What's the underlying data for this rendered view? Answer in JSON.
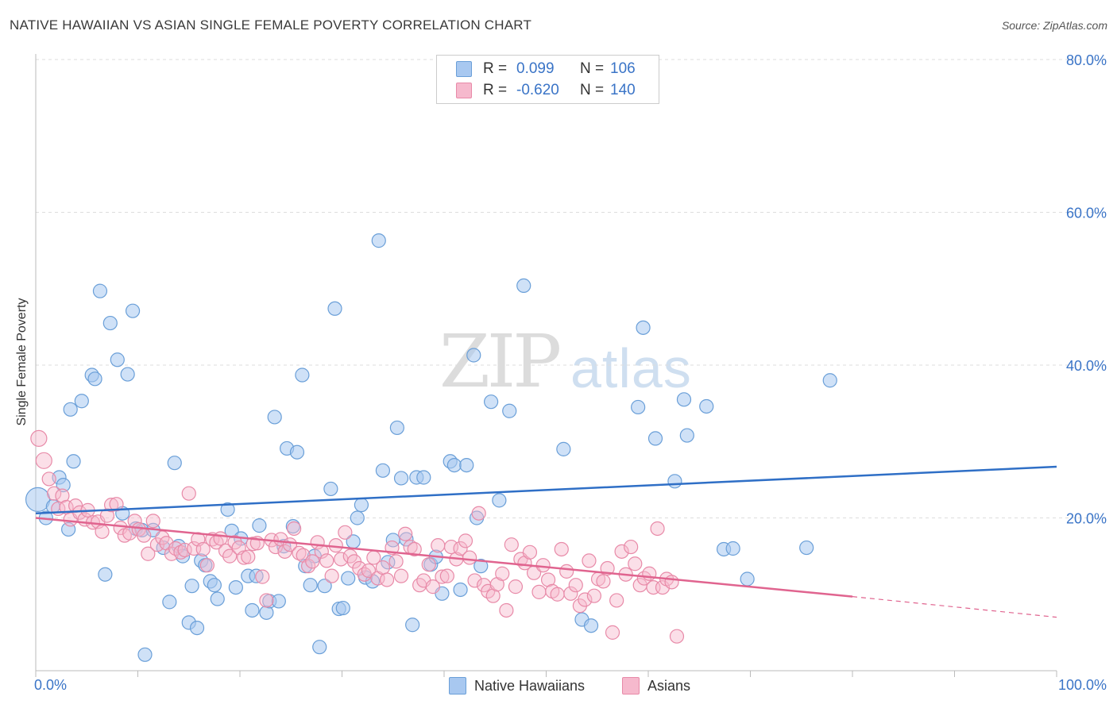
{
  "title": "NATIVE HAWAIIAN VS ASIAN SINGLE FEMALE POVERTY CORRELATION CHART",
  "source": "Source: ZipAtlas.com",
  "watermark": {
    "zip": "ZIP",
    "atlas": "atlas"
  },
  "legend": {
    "rows": [
      {
        "r_label": "R =",
        "r_value": "0.099",
        "n_label": "N =",
        "n_value": "106"
      },
      {
        "r_label": "R =",
        "r_value": "-0.620",
        "n_label": "N =",
        "n_value": "140"
      }
    ]
  },
  "bottom_legend": [
    "Native Hawaiians",
    "Asians"
  ],
  "colors": {
    "blue_fill": "#a8c8f0",
    "blue_stroke": "#6a9fd8",
    "blue_line": "#2f6fc6",
    "pink_fill": "#f6b9cd",
    "pink_stroke": "#e88aa8",
    "pink_line": "#e0648f",
    "tick_label": "#3a74c7",
    "grid": "#dddddd"
  },
  "chart_data": {
    "type": "scatter",
    "title": "NATIVE HAWAIIAN VS ASIAN SINGLE FEMALE POVERTY CORRELATION CHART",
    "xlabel": "",
    "ylabel": "Single Female Poverty",
    "xlim": [
      0,
      100
    ],
    "ylim": [
      0,
      80
    ],
    "x_tick_labels": [
      "0.0%",
      "100.0%"
    ],
    "y_ticks": [
      20,
      40,
      60,
      80
    ],
    "y_tick_labels": [
      "20.0%",
      "40.0%",
      "60.0%",
      "80.0%"
    ],
    "grid": true,
    "legend_position": "top-center",
    "series": [
      {
        "name": "Native Hawaiians",
        "r": 0.099,
        "n": 106,
        "trend": {
          "x": [
            0,
            100
          ],
          "y": [
            20.6,
            26.7
          ]
        },
        "points": [
          [
            0.2,
            22.4
          ],
          [
            1.0,
            20.0
          ],
          [
            1.7,
            21.5
          ],
          [
            2.3,
            25.3
          ],
          [
            2.7,
            24.3
          ],
          [
            3.2,
            18.5
          ],
          [
            3.4,
            34.2
          ],
          [
            3.7,
            27.4
          ],
          [
            4.5,
            35.3
          ],
          [
            5.5,
            38.7
          ],
          [
            5.8,
            38.2
          ],
          [
            6.3,
            49.7
          ],
          [
            6.8,
            12.6
          ],
          [
            7.3,
            45.5
          ],
          [
            8.0,
            40.7
          ],
          [
            8.5,
            20.6
          ],
          [
            9.0,
            38.8
          ],
          [
            9.5,
            47.1
          ],
          [
            9.8,
            18.6
          ],
          [
            10.4,
            18.4
          ],
          [
            10.7,
            2.1
          ],
          [
            11.5,
            18.4
          ],
          [
            12.5,
            16.1
          ],
          [
            13.1,
            9.0
          ],
          [
            13.6,
            27.2
          ],
          [
            14.0,
            16.3
          ],
          [
            14.4,
            15.0
          ],
          [
            15.0,
            6.3
          ],
          [
            15.3,
            11.1
          ],
          [
            15.8,
            5.6
          ],
          [
            16.2,
            14.4
          ],
          [
            16.6,
            13.8
          ],
          [
            17.1,
            11.7
          ],
          [
            17.5,
            11.2
          ],
          [
            17.8,
            9.4
          ],
          [
            18.8,
            21.1
          ],
          [
            19.2,
            18.3
          ],
          [
            19.6,
            10.9
          ],
          [
            20.1,
            17.3
          ],
          [
            20.8,
            12.4
          ],
          [
            21.2,
            7.9
          ],
          [
            21.6,
            12.4
          ],
          [
            21.9,
            19.0
          ],
          [
            22.6,
            7.6
          ],
          [
            22.9,
            9.1
          ],
          [
            23.4,
            33.2
          ],
          [
            23.8,
            9.1
          ],
          [
            24.3,
            16.3
          ],
          [
            24.6,
            29.1
          ],
          [
            25.2,
            18.9
          ],
          [
            25.6,
            28.6
          ],
          [
            26.1,
            38.7
          ],
          [
            26.4,
            13.7
          ],
          [
            26.9,
            11.2
          ],
          [
            27.3,
            15.0
          ],
          [
            27.8,
            3.1
          ],
          [
            28.3,
            11.1
          ],
          [
            28.9,
            23.8
          ],
          [
            29.3,
            47.4
          ],
          [
            29.7,
            8.1
          ],
          [
            30.1,
            8.2
          ],
          [
            30.6,
            12.1
          ],
          [
            31.1,
            16.9
          ],
          [
            31.5,
            20.0
          ],
          [
            31.9,
            21.7
          ],
          [
            32.3,
            12.2
          ],
          [
            33.0,
            11.7
          ],
          [
            33.6,
            56.3
          ],
          [
            34.0,
            26.2
          ],
          [
            34.5,
            14.2
          ],
          [
            35.0,
            17.1
          ],
          [
            35.4,
            31.8
          ],
          [
            35.8,
            25.2
          ],
          [
            36.3,
            17.2
          ],
          [
            36.9,
            6.0
          ],
          [
            37.3,
            25.3
          ],
          [
            38.0,
            25.3
          ],
          [
            38.7,
            13.9
          ],
          [
            39.2,
            14.9
          ],
          [
            39.8,
            10.1
          ],
          [
            40.6,
            27.4
          ],
          [
            41.0,
            26.9
          ],
          [
            41.6,
            10.6
          ],
          [
            42.2,
            26.9
          ],
          [
            42.9,
            41.3
          ],
          [
            43.2,
            20.0
          ],
          [
            43.6,
            13.7
          ],
          [
            44.6,
            35.2
          ],
          [
            45.4,
            22.3
          ],
          [
            46.4,
            34.0
          ],
          [
            47.8,
            50.4
          ],
          [
            51.7,
            29.0
          ],
          [
            53.5,
            6.7
          ],
          [
            54.4,
            5.9
          ],
          [
            59.0,
            34.5
          ],
          [
            59.5,
            44.9
          ],
          [
            60.7,
            30.4
          ],
          [
            62.6,
            24.8
          ],
          [
            63.5,
            35.5
          ],
          [
            63.8,
            30.8
          ],
          [
            65.7,
            34.6
          ],
          [
            67.4,
            15.9
          ],
          [
            68.3,
            16.0
          ],
          [
            69.7,
            12.0
          ],
          [
            75.5,
            16.1
          ],
          [
            77.8,
            38.0
          ]
        ]
      },
      {
        "name": "Asians",
        "r": -0.62,
        "n": 140,
        "trend": {
          "x": [
            0,
            80
          ],
          "y": [
            20.0,
            9.7
          ]
        },
        "trend_dashed": {
          "x": [
            80,
            100
          ],
          "y": [
            9.7,
            7.0
          ]
        },
        "points": [
          [
            0.3,
            30.4
          ],
          [
            0.8,
            27.5
          ],
          [
            1.3,
            25.1
          ],
          [
            1.8,
            23.2
          ],
          [
            2.2,
            21.2
          ],
          [
            2.6,
            22.9
          ],
          [
            3.0,
            21.4
          ],
          [
            3.4,
            19.8
          ],
          [
            3.9,
            21.6
          ],
          [
            4.3,
            20.7
          ],
          [
            4.8,
            19.8
          ],
          [
            5.1,
            21.0
          ],
          [
            5.6,
            19.4
          ],
          [
            6.1,
            19.5
          ],
          [
            6.5,
            18.2
          ],
          [
            7.0,
            20.3
          ],
          [
            7.4,
            21.7
          ],
          [
            7.9,
            21.8
          ],
          [
            8.3,
            18.7
          ],
          [
            8.7,
            17.7
          ],
          [
            9.2,
            18.0
          ],
          [
            9.7,
            19.6
          ],
          [
            10.1,
            18.5
          ],
          [
            10.6,
            17.7
          ],
          [
            11.0,
            15.3
          ],
          [
            11.5,
            19.6
          ],
          [
            11.9,
            16.5
          ],
          [
            12.4,
            17.4
          ],
          [
            12.8,
            16.7
          ],
          [
            13.3,
            15.3
          ],
          [
            13.7,
            16.0
          ],
          [
            14.2,
            15.5
          ],
          [
            14.6,
            15.8
          ],
          [
            15.0,
            23.2
          ],
          [
            15.5,
            16.0
          ],
          [
            15.9,
            17.2
          ],
          [
            16.4,
            15.9
          ],
          [
            16.8,
            13.8
          ],
          [
            17.3,
            17.2
          ],
          [
            17.7,
            16.8
          ],
          [
            18.1,
            17.3
          ],
          [
            18.6,
            15.7
          ],
          [
            19.0,
            15.0
          ],
          [
            19.5,
            16.8
          ],
          [
            19.9,
            16.1
          ],
          [
            20.4,
            14.8
          ],
          [
            20.8,
            14.9
          ],
          [
            21.3,
            16.6
          ],
          [
            21.7,
            16.7
          ],
          [
            22.2,
            12.3
          ],
          [
            22.6,
            9.2
          ],
          [
            23.1,
            17.1
          ],
          [
            23.5,
            16.2
          ],
          [
            24.0,
            17.2
          ],
          [
            24.4,
            15.6
          ],
          [
            24.9,
            16.5
          ],
          [
            25.3,
            18.6
          ],
          [
            25.8,
            15.4
          ],
          [
            26.2,
            15.1
          ],
          [
            26.7,
            13.7
          ],
          [
            27.1,
            14.3
          ],
          [
            27.6,
            16.8
          ],
          [
            28.0,
            15.6
          ],
          [
            28.5,
            14.4
          ],
          [
            29.0,
            12.4
          ],
          [
            29.4,
            16.4
          ],
          [
            29.9,
            14.6
          ],
          [
            30.3,
            18.1
          ],
          [
            30.8,
            15.0
          ],
          [
            31.2,
            14.3
          ],
          [
            31.7,
            13.4
          ],
          [
            32.2,
            12.6
          ],
          [
            32.6,
            13.1
          ],
          [
            33.1,
            14.8
          ],
          [
            33.5,
            12.1
          ],
          [
            34.0,
            13.5
          ],
          [
            34.4,
            11.9
          ],
          [
            34.9,
            16.1
          ],
          [
            35.3,
            14.3
          ],
          [
            35.8,
            12.4
          ],
          [
            36.2,
            17.9
          ],
          [
            36.7,
            16.2
          ],
          [
            37.1,
            15.9
          ],
          [
            37.6,
            11.2
          ],
          [
            38.0,
            11.8
          ],
          [
            38.5,
            13.9
          ],
          [
            38.9,
            11.0
          ],
          [
            39.4,
            16.4
          ],
          [
            39.8,
            12.3
          ],
          [
            40.3,
            12.4
          ],
          [
            40.7,
            16.2
          ],
          [
            41.2,
            14.6
          ],
          [
            41.6,
            16.0
          ],
          [
            42.1,
            17.0
          ],
          [
            42.5,
            14.8
          ],
          [
            43.0,
            11.8
          ],
          [
            43.4,
            20.6
          ],
          [
            43.9,
            11.2
          ],
          [
            44.3,
            10.4
          ],
          [
            44.8,
            9.8
          ],
          [
            45.2,
            11.3
          ],
          [
            45.7,
            12.7
          ],
          [
            46.1,
            7.9
          ],
          [
            46.6,
            16.5
          ],
          [
            47.0,
            11.0
          ],
          [
            47.5,
            14.6
          ],
          [
            47.9,
            14.1
          ],
          [
            48.4,
            15.5
          ],
          [
            48.8,
            12.8
          ],
          [
            49.3,
            10.3
          ],
          [
            49.7,
            13.8
          ],
          [
            50.2,
            11.9
          ],
          [
            50.6,
            10.4
          ],
          [
            51.1,
            10.0
          ],
          [
            51.5,
            15.9
          ],
          [
            52.0,
            13.0
          ],
          [
            52.4,
            10.1
          ],
          [
            52.9,
            11.2
          ],
          [
            53.3,
            8.5
          ],
          [
            53.8,
            9.3
          ],
          [
            54.2,
            14.4
          ],
          [
            54.7,
            9.8
          ],
          [
            55.1,
            12.0
          ],
          [
            55.6,
            11.7
          ],
          [
            56.0,
            13.4
          ],
          [
            56.5,
            5.0
          ],
          [
            56.9,
            9.2
          ],
          [
            57.4,
            15.6
          ],
          [
            57.8,
            12.6
          ],
          [
            58.3,
            16.2
          ],
          [
            58.7,
            14.0
          ],
          [
            59.2,
            11.2
          ],
          [
            59.6,
            12.1
          ],
          [
            60.1,
            12.7
          ],
          [
            60.5,
            10.9
          ],
          [
            60.9,
            18.6
          ],
          [
            61.4,
            10.9
          ],
          [
            61.8,
            12.0
          ],
          [
            62.3,
            11.6
          ],
          [
            62.8,
            4.5
          ]
        ]
      }
    ]
  }
}
